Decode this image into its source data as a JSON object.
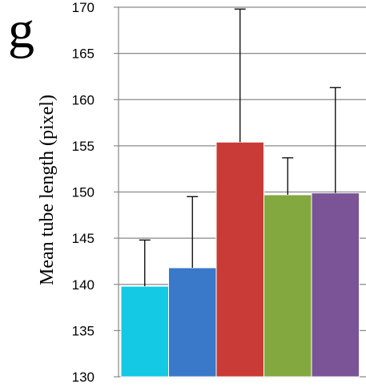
{
  "panel_label": "g",
  "chart_data": {
    "type": "bar",
    "title": "",
    "xlabel": "",
    "ylabel": "Mean tube length (pixel)",
    "ylim": [
      130,
      170
    ],
    "yticks": [
      130,
      135,
      140,
      145,
      150,
      155,
      160,
      165,
      170
    ],
    "grid": true,
    "legend": "none",
    "categories": [
      "",
      "",
      "",
      "",
      ""
    ],
    "values": [
      139.8,
      141.8,
      155.4,
      149.7,
      149.9
    ],
    "error_upper": [
      144.8,
      149.5,
      169.8,
      153.7,
      161.3
    ],
    "colors": [
      "#13c9e3",
      "#3a78c9",
      "#c93b36",
      "#83a83f",
      "#7a5496"
    ]
  }
}
